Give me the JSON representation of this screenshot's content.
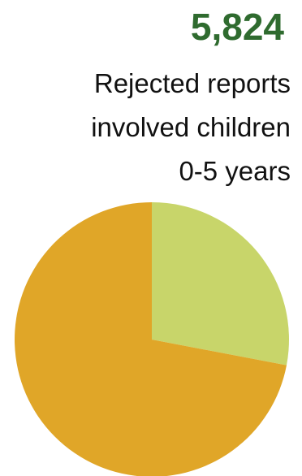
{
  "stat": {
    "value": "5,824",
    "description_lines": [
      "Rejected reports",
      "involved children",
      "0-5 years"
    ]
  },
  "chart_data": {
    "type": "pie",
    "categories": [
      "",
      ""
    ],
    "values": [
      28,
      72
    ],
    "colors": [
      "#c8d56a",
      "#e0a628"
    ],
    "start_angle": "12 o'clock",
    "direction": "clockwise"
  }
}
